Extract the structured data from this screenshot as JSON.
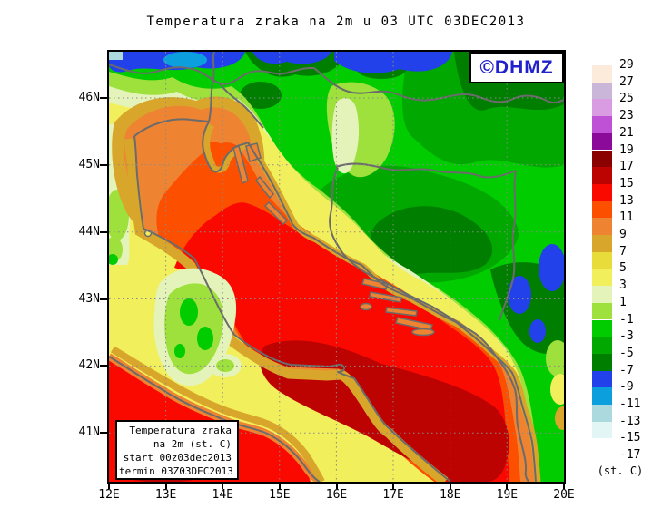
{
  "title": "Temperatura zraka na 2m u 03 UTC 03DEC2013",
  "watermark": {
    "text": "©DHMZ",
    "color": "#2222CC"
  },
  "info_box": {
    "lines": [
      "Temperatura zraka",
      "na 2m (st. C)",
      "start 00z03dec2013",
      "termin 03Z03DEC2013"
    ]
  },
  "axes": {
    "lat_labels": [
      "46N",
      "45N",
      "44N",
      "43N",
      "42N",
      "41N"
    ],
    "lon_labels": [
      "12E",
      "13E",
      "14E",
      "15E",
      "16E",
      "17E",
      "18E",
      "19E",
      "20E"
    ]
  },
  "colorbar": {
    "unit": "(st. C)",
    "labels": [
      "29",
      "27",
      "25",
      "23",
      "21",
      "19",
      "17",
      "15",
      "13",
      "11",
      "9",
      "7",
      "5",
      "3",
      "1",
      "-1",
      "-3",
      "-5",
      "-7",
      "-9",
      "-11",
      "-13",
      "-15",
      "-17"
    ],
    "colors": [
      "#FCEADB",
      "#C9B6D8",
      "#D99CE2",
      "#BE51D5",
      "#8C0A99",
      "#8B0000",
      "#BD0202",
      "#F90900",
      "#FC5000",
      "#EE8432",
      "#D8A62B",
      "#E8DC3A",
      "#F2EF5C",
      "#E4F3BA",
      "#9EE03C",
      "#00CC00",
      "#00A800",
      "#007E00",
      "#2341EB",
      "#0C9FDE",
      "#ABD9DD",
      "#E2F6F6",
      "#FFFFFF"
    ]
  }
}
